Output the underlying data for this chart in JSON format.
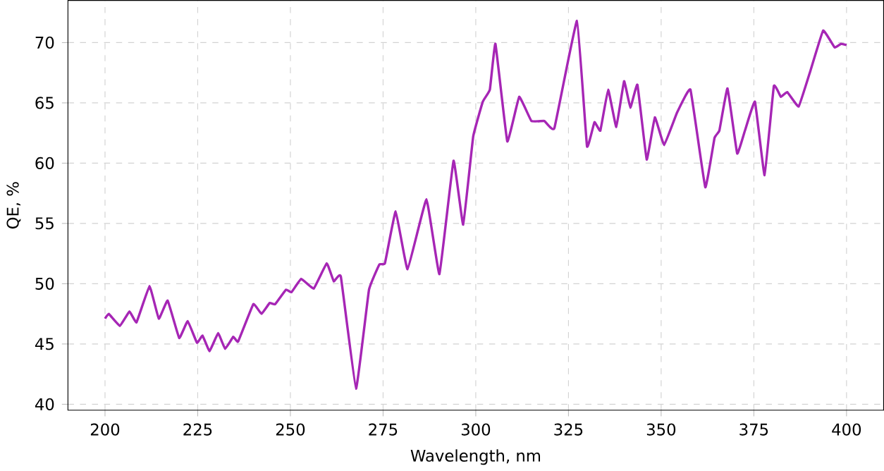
{
  "chart_data": {
    "type": "line",
    "xlabel": "Wavelength, nm",
    "ylabel": "QE, %",
    "xlim": [
      190,
      410
    ],
    "ylim": [
      39.5,
      73.5
    ],
    "xticks": [
      200,
      225,
      250,
      275,
      300,
      325,
      350,
      375,
      400
    ],
    "yticks": [
      40,
      45,
      50,
      55,
      60,
      65,
      70
    ],
    "grid": true,
    "line_style": "solid",
    "marker": "none",
    "series": [
      {
        "color": "#a626b5",
        "x": [
          200,
          201,
          204,
          206.6,
          208.5,
          212,
          214.5,
          216.9,
          220,
          222.3,
          224.8,
          226.3,
          228.2,
          230.5,
          232.4,
          234.6,
          235.9,
          240,
          242.2,
          244.4,
          245.9,
          248.8,
          250.3,
          252.9,
          256.3,
          259.8,
          261.7,
          263.6,
          267.7,
          271.2,
          274,
          275.5,
          278.4,
          281.6,
          286.7,
          290.2,
          294,
          296.6,
          299.3,
          301.9,
          303.8,
          305.3,
          308.5,
          311.7,
          315,
          318.5,
          321.2,
          327.3,
          330,
          332,
          333.6,
          335.7,
          337.9,
          340,
          341.7,
          343.6,
          346.1,
          348.3,
          350.8,
          354.3,
          357.9,
          361.9,
          364.4,
          365.7,
          367.9,
          370.5,
          372.6,
          375.3,
          377.9,
          380.4,
          382.3,
          384,
          387.1,
          390.3,
          393.7,
          396.8,
          398.5,
          400
        ],
        "values": [
          47.1,
          47.5,
          46.5,
          47.7,
          46.8,
          49.8,
          47.1,
          48.6,
          45.5,
          46.9,
          45.1,
          45.7,
          44.4,
          45.9,
          44.6,
          45.6,
          45.2,
          48.3,
          47.5,
          48.4,
          48.3,
          49.5,
          49.3,
          50.4,
          49.6,
          51.7,
          50.2,
          50.6,
          41.3,
          49.5,
          51.6,
          51.7,
          56.0,
          51.2,
          57.0,
          50.8,
          60.2,
          54.9,
          62.2,
          65.1,
          66.1,
          69.9,
          61.8,
          65.5,
          63.5,
          63.5,
          62.9,
          71.8,
          61.4,
          63.4,
          62.7,
          66.1,
          63.0,
          66.8,
          64.6,
          66.5,
          60.3,
          63.8,
          61.5,
          64.2,
          66.1,
          58.0,
          62.1,
          62.7,
          66.2,
          60.8,
          62.7,
          65.1,
          59.0,
          66.4,
          65.5,
          65.9,
          64.7,
          67.7,
          71.0,
          69.6,
          69.9,
          69.8
        ]
      }
    ]
  }
}
